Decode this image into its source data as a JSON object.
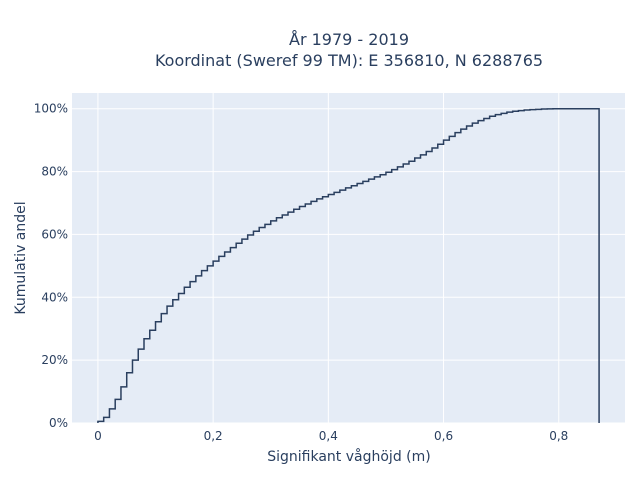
{
  "chart_data": {
    "type": "line",
    "subtype": "step-ecdf",
    "title_line1": "År 1979 - 2019",
    "title_line2": "Koordinat (Sweref 99 TM): E 356810, N 6288765",
    "xlabel": "Signifikant våghöjd (m)",
    "ylabel": "Kumulativ andel",
    "xlim": [
      -0.045,
      0.915
    ],
    "ylim": [
      0,
      1.05
    ],
    "x_ticks": [
      0,
      0.2,
      0.4,
      0.6,
      0.8
    ],
    "x_tick_labels": [
      "0",
      "0,2",
      "0,4",
      "0,6",
      "0,8"
    ],
    "y_ticks": [
      0,
      0.2,
      0.4,
      0.6,
      0.8,
      1.0
    ],
    "y_tick_labels": [
      "0%",
      "20%",
      "40%",
      "60%",
      "80%",
      "100%"
    ],
    "grid": true,
    "colors": {
      "plot_bg": "#e5ecf6",
      "grid": "#ffffff",
      "line": "#2a3f5f",
      "text": "#2a3f5f"
    },
    "series": [
      {
        "x": [
          0,
          0.01,
          0.02,
          0.03,
          0.04,
          0.05,
          0.06,
          0.07,
          0.08,
          0.09,
          0.1,
          0.11,
          0.12,
          0.13,
          0.14,
          0.15,
          0.16,
          0.17,
          0.18,
          0.19,
          0.2,
          0.21,
          0.22,
          0.23,
          0.24,
          0.25,
          0.26,
          0.27,
          0.28,
          0.29,
          0.3,
          0.31,
          0.32,
          0.33,
          0.34,
          0.35,
          0.36,
          0.37,
          0.38,
          0.39,
          0.4,
          0.41,
          0.42,
          0.43,
          0.44,
          0.45,
          0.46,
          0.47,
          0.48,
          0.49,
          0.5,
          0.51,
          0.52,
          0.53,
          0.54,
          0.55,
          0.56,
          0.57,
          0.58,
          0.59,
          0.6,
          0.61,
          0.62,
          0.63,
          0.64,
          0.65,
          0.66,
          0.67,
          0.68,
          0.69,
          0.7,
          0.71,
          0.72,
          0.73,
          0.74,
          0.75,
          0.76,
          0.77,
          0.78,
          0.79,
          0.8,
          0.81,
          0.82,
          0.83,
          0.84,
          0.85,
          0.86,
          0.87
        ],
        "y": [
          0.005,
          0.018,
          0.045,
          0.075,
          0.115,
          0.16,
          0.2,
          0.235,
          0.268,
          0.295,
          0.322,
          0.348,
          0.372,
          0.392,
          0.412,
          0.432,
          0.45,
          0.468,
          0.485,
          0.5,
          0.515,
          0.53,
          0.544,
          0.558,
          0.572,
          0.585,
          0.598,
          0.61,
          0.622,
          0.632,
          0.643,
          0.653,
          0.662,
          0.671,
          0.68,
          0.689,
          0.697,
          0.705,
          0.713,
          0.72,
          0.727,
          0.734,
          0.741,
          0.748,
          0.755,
          0.762,
          0.769,
          0.776,
          0.783,
          0.79,
          0.798,
          0.806,
          0.815,
          0.824,
          0.833,
          0.843,
          0.853,
          0.864,
          0.875,
          0.887,
          0.9,
          0.912,
          0.924,
          0.935,
          0.945,
          0.954,
          0.962,
          0.969,
          0.976,
          0.981,
          0.985,
          0.989,
          0.992,
          0.994,
          0.996,
          0.997,
          0.998,
          0.999,
          0.9995,
          1,
          1,
          1,
          1,
          1,
          1,
          1,
          1,
          1
        ]
      }
    ]
  }
}
